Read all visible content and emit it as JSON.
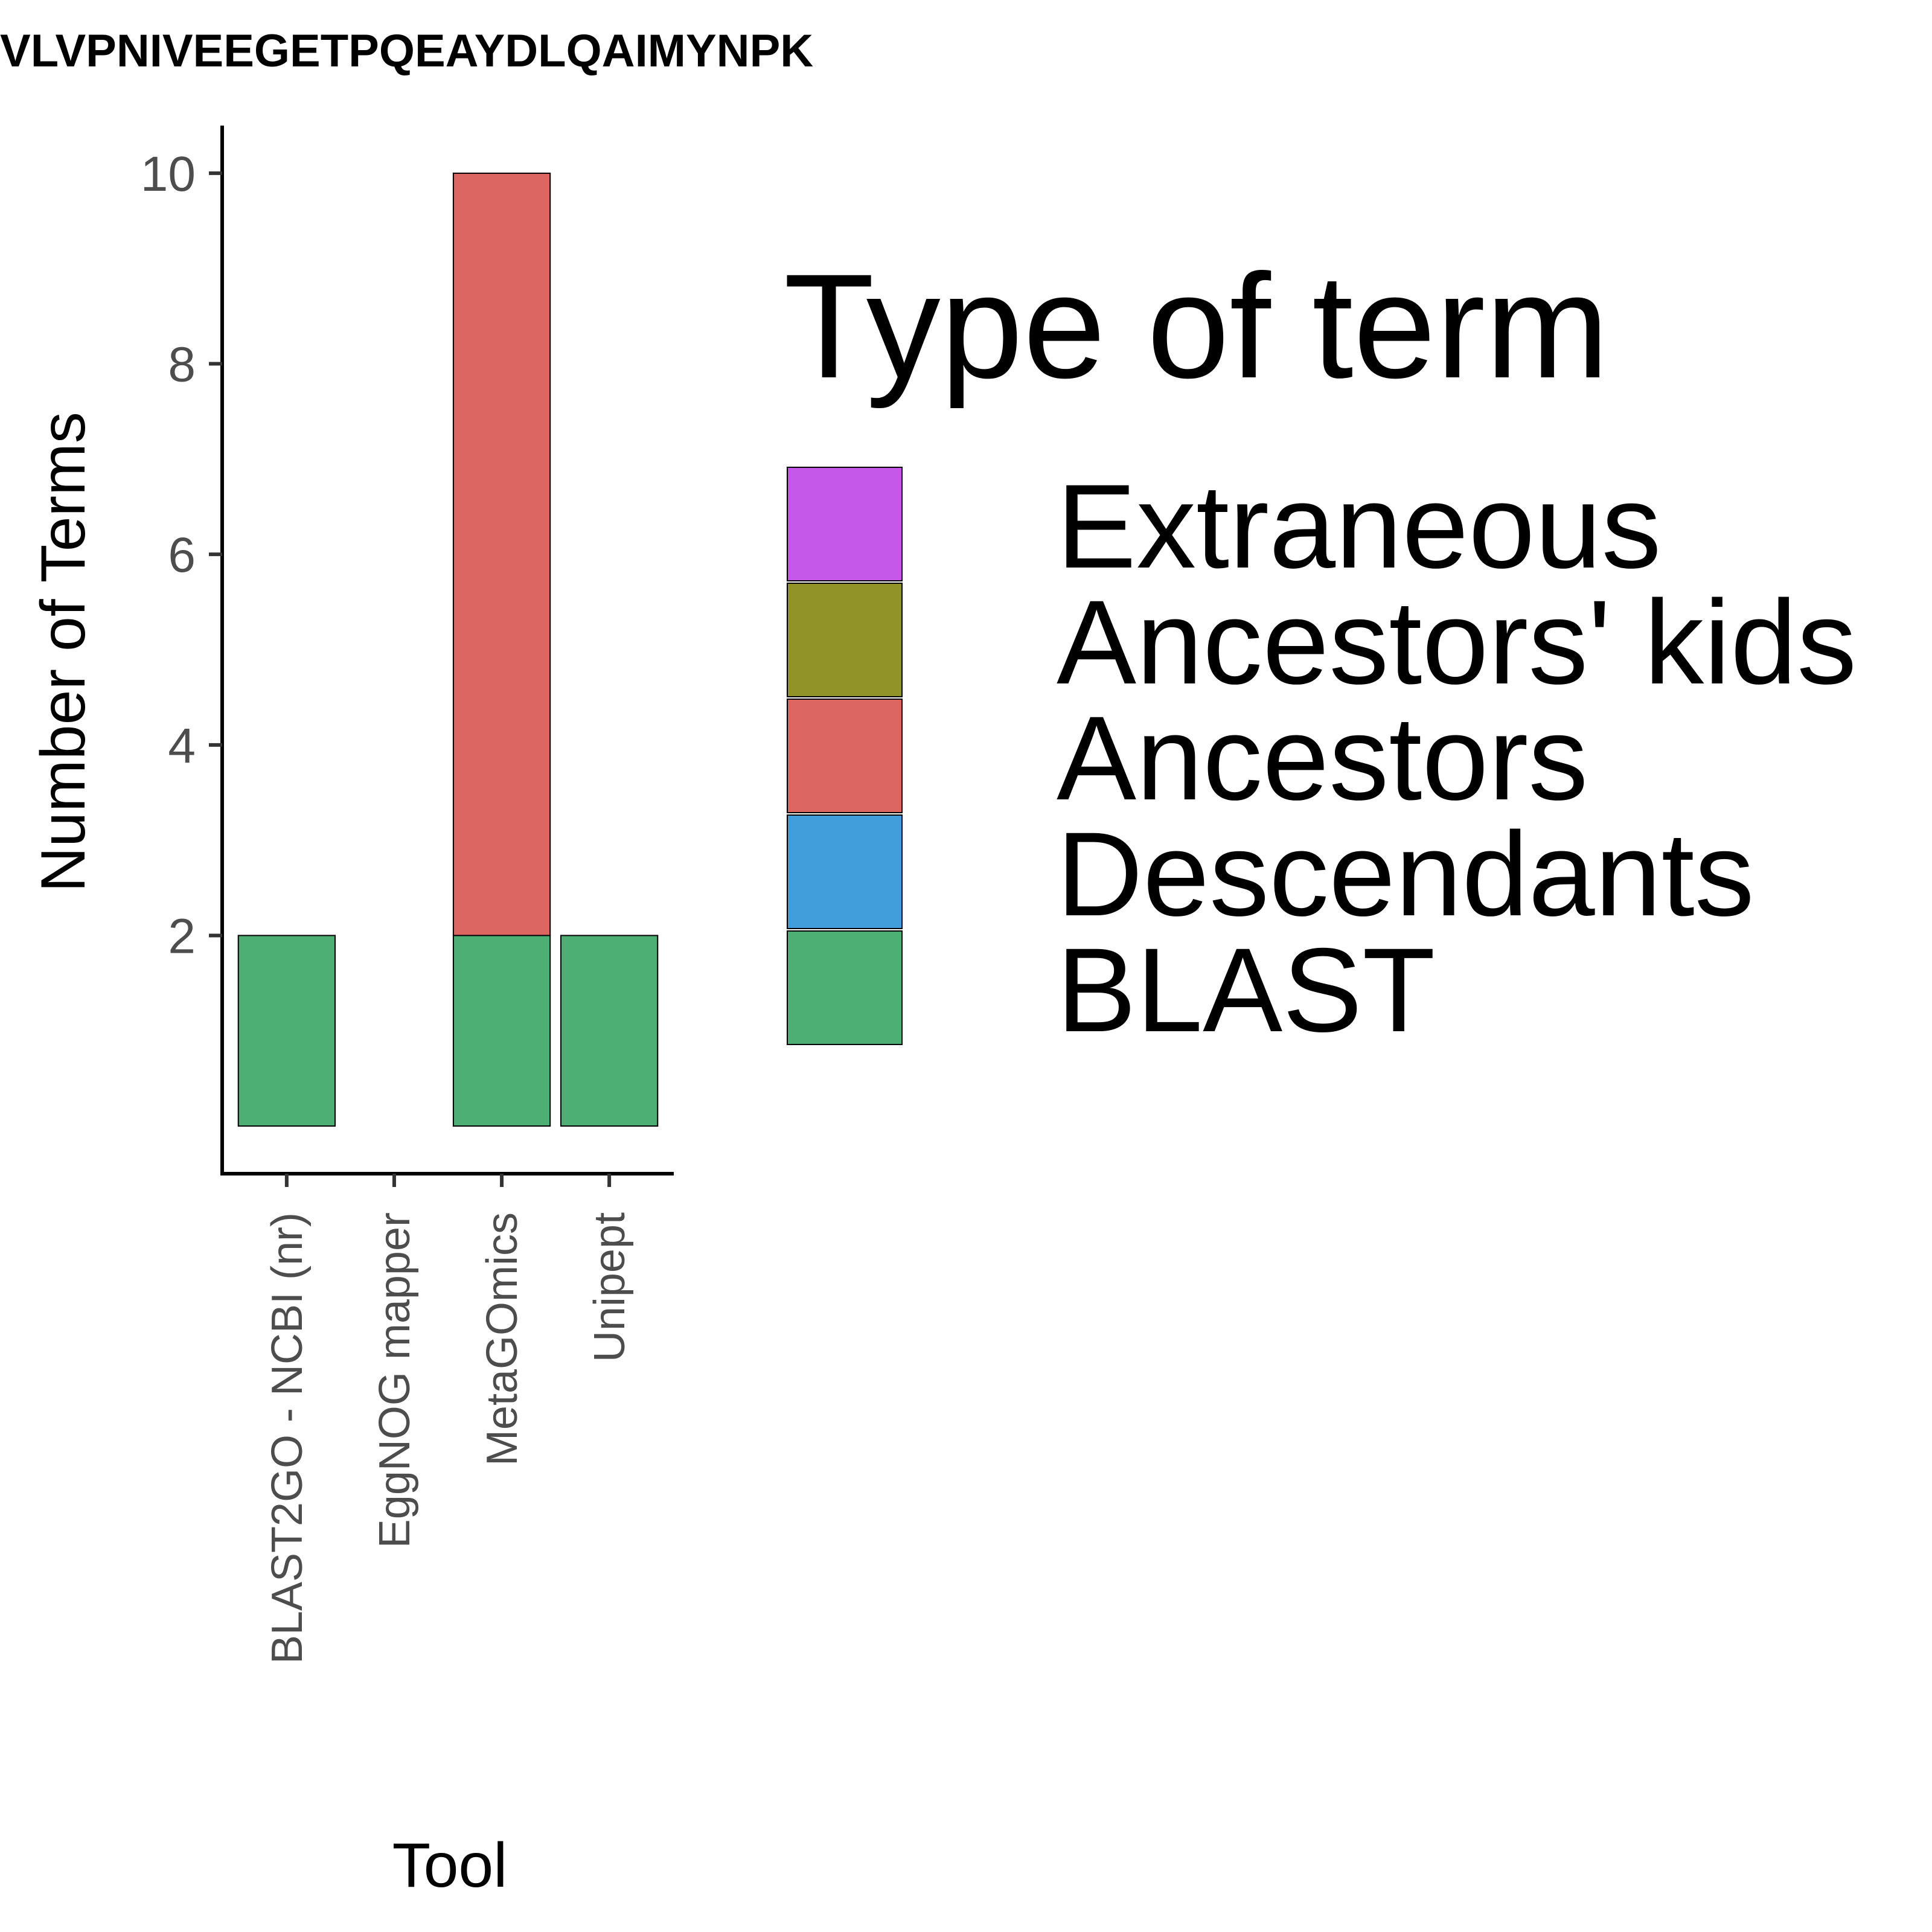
{
  "chart_data": {
    "type": "bar",
    "stacked": true,
    "title": "VLVPNIVEEGETPQEAYDLQAIMYNPK",
    "xlabel": "Tool",
    "ylabel": "Number of Terms",
    "categories": [
      "BLAST2GO - NCBI (nr)",
      "EggNOG mapper",
      "MetaGOmics",
      "Unipept"
    ],
    "y_ticks": [
      2,
      4,
      6,
      8,
      10
    ],
    "ylim": [
      -0.5,
      10.5
    ],
    "grid": false,
    "legend_position": "right",
    "legend_title": "Type of term",
    "legend_order": [
      "Extraneous",
      "Ancestors' kids",
      "Ancestors",
      "Descendants",
      "BLAST"
    ],
    "series": [
      {
        "name": "BLAST",
        "color": "#4daf74",
        "values": [
          2,
          0,
          2,
          2
        ]
      },
      {
        "name": "Descendants",
        "color": "#429edb",
        "values": [
          0,
          0,
          0,
          0
        ]
      },
      {
        "name": "Ancestors",
        "color": "#dc6660",
        "values": [
          0,
          0,
          8,
          0
        ]
      },
      {
        "name": "Ancestors' kids",
        "color": "#919329",
        "values": [
          0,
          0,
          0,
          0
        ]
      },
      {
        "name": "Extraneous",
        "color": "#c558e8",
        "values": [
          0,
          0,
          0,
          0
        ]
      }
    ]
  }
}
